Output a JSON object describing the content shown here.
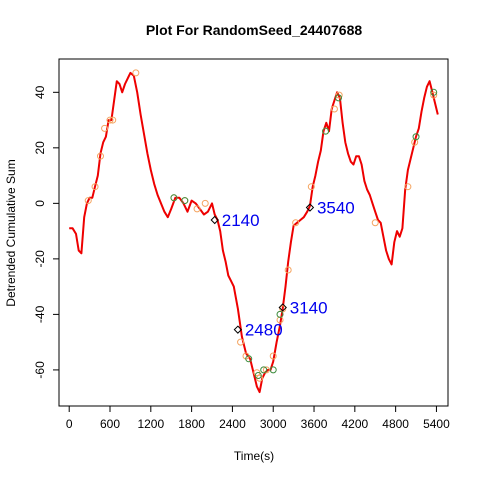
{
  "chart_data": {
    "type": "line",
    "title": "Plot For RandomSeed_24407688",
    "xlabel": "Time(s)",
    "ylabel": "Detrended Cumulative Sum",
    "xlim": [
      -150,
      5570
    ],
    "ylim": [
      -73,
      52
    ],
    "xticks": [
      0,
      600,
      1200,
      1800,
      2400,
      3000,
      3600,
      4200,
      4800,
      5400
    ],
    "yticks": [
      -60,
      -40,
      -20,
      0,
      20,
      40
    ],
    "grid": false,
    "legend": "none",
    "colors": {
      "line": "#ee0000",
      "orange_markers": "#f4a460",
      "green_markers": "#3a8a3a",
      "diamond": "#000000",
      "annotation": "#0000ee"
    },
    "series": [
      {
        "style": "red-line",
        "x": [
          0,
          50,
          100,
          140,
          180,
          220,
          260,
          300,
          340,
          380,
          420,
          460,
          500,
          540,
          580,
          620,
          660,
          700,
          740,
          780,
          820,
          860,
          900,
          950,
          1000,
          1050,
          1100,
          1150,
          1200,
          1250,
          1300,
          1350,
          1400,
          1450,
          1500,
          1560,
          1620,
          1680,
          1740,
          1800,
          1860,
          1920,
          1980,
          2040,
          2100,
          2140,
          2180,
          2220,
          2260,
          2300,
          2340,
          2380,
          2420,
          2480,
          2540,
          2600,
          2660,
          2720,
          2760,
          2800,
          2840,
          2880,
          2920,
          2960,
          3000,
          3050,
          3100,
          3140,
          3180,
          3220,
          3260,
          3300,
          3350,
          3400,
          3450,
          3500,
          3540,
          3580,
          3620,
          3660,
          3700,
          3740,
          3780,
          3820,
          3860,
          3900,
          3940,
          3980,
          4020,
          4060,
          4100,
          4140,
          4180,
          4220,
          4260,
          4300,
          4340,
          4380,
          4420,
          4460,
          4500,
          4540,
          4580,
          4620,
          4660,
          4700,
          4740,
          4780,
          4820,
          4860,
          4900,
          4940,
          4980,
          5020,
          5060,
          5100,
          5140,
          5180,
          5220,
          5260,
          5300,
          5340,
          5380,
          5420
        ],
        "y": [
          -9,
          -9,
          -11,
          -17,
          -18,
          -5,
          0,
          2,
          2,
          6,
          10,
          18,
          22,
          24,
          30,
          30,
          37,
          44,
          43,
          40,
          43,
          45,
          47,
          46,
          40,
          32,
          25,
          18,
          12,
          7,
          3,
          0,
          -3,
          -5,
          -2,
          2,
          2,
          0,
          -3,
          1,
          0,
          -2,
          -4,
          -3,
          0,
          -4,
          -6,
          -10,
          -17,
          -21,
          -26,
          -28,
          -30,
          -38,
          -48,
          -54,
          -56,
          -62,
          -66,
          -68,
          -63,
          -61,
          -60,
          -60,
          -57,
          -50,
          -44,
          -38,
          -30,
          -21,
          -14,
          -8,
          -7,
          -6,
          -5,
          -3,
          -1,
          6,
          10,
          15,
          19,
          26,
          29,
          26,
          34,
          37,
          40,
          38,
          29,
          22,
          18,
          15,
          14,
          17,
          17,
          14,
          8,
          5,
          3,
          0,
          -3,
          -6,
          -7,
          -12,
          -17,
          -20,
          -22,
          -14,
          -10,
          -12,
          -9,
          5,
          12,
          16,
          20,
          24,
          27,
          33,
          38,
          42,
          44,
          40,
          36,
          32
        ]
      },
      {
        "style": "orange-circles",
        "x": [
          280,
          380,
          460,
          520,
          600,
          640,
          980,
          1540,
          1700,
          1880,
          2000,
          2520,
          2600,
          2760,
          2800,
          2900,
          3000,
          3100,
          3140,
          3220,
          3330,
          3560,
          3770,
          3900,
          3970,
          4500,
          4980,
          5080,
          5360
        ],
        "y": [
          1,
          6,
          17,
          27,
          30,
          30,
          47,
          2,
          1,
          -2,
          0,
          -50,
          -55,
          -61,
          -63,
          -60,
          -55,
          -42,
          -38,
          -24,
          -7,
          6,
          26,
          34,
          39,
          -7,
          6,
          22,
          39
        ]
      },
      {
        "style": "green-circles",
        "x": [
          1540,
          1700,
          2640,
          2780,
          2860,
          3000,
          3100,
          3770,
          3960,
          5100,
          5360
        ],
        "y": [
          2,
          1,
          -56,
          -62,
          -60,
          -60,
          -40,
          26,
          38,
          24,
          40
        ]
      }
    ],
    "annotations": [
      {
        "label": "2140",
        "x": 2140,
        "y": -6
      },
      {
        "label": "2480",
        "x": 2480,
        "y": -45.5
      },
      {
        "label": "3140",
        "x": 3140,
        "y": -37.5
      },
      {
        "label": "3540",
        "x": 3540,
        "y": -1.5
      }
    ]
  }
}
